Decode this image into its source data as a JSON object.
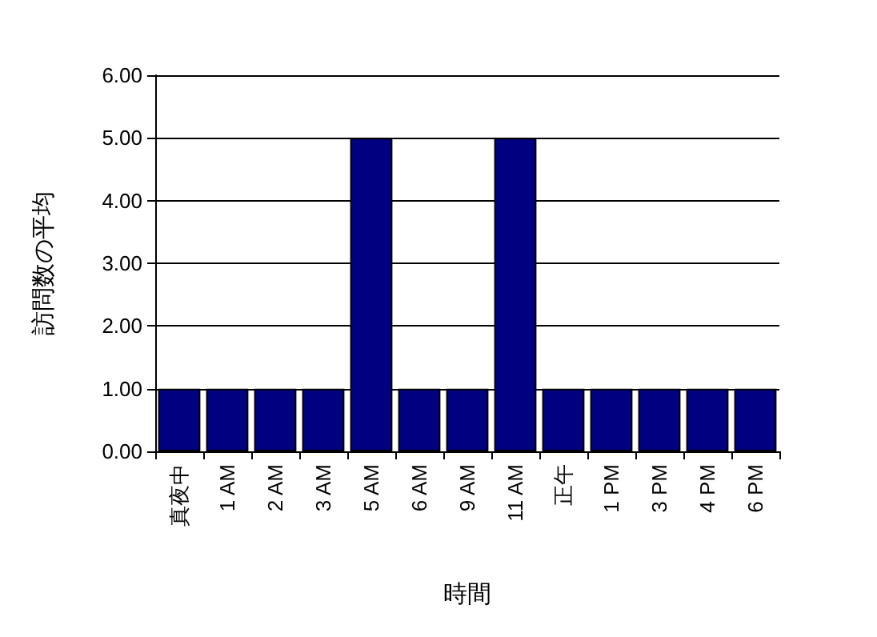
{
  "chart_data": {
    "type": "bar",
    "xlabel": "時間",
    "ylabel": "訪問数の平均",
    "categories": [
      "真夜中",
      "1 AM",
      "2 AM",
      "3 AM",
      "5 AM",
      "6 AM",
      "9 AM",
      "11 AM",
      "正午",
      "1 PM",
      "3 PM",
      "4 PM",
      "6 PM"
    ],
    "values": [
      1,
      1,
      1,
      1,
      5,
      1,
      1,
      5,
      1,
      1,
      1,
      1,
      1
    ],
    "color": "#000080",
    "ylim": [
      0,
      6
    ],
    "yticks": [
      {
        "value": 0,
        "label": "0.00"
      },
      {
        "value": 1,
        "label": "1.00"
      },
      {
        "value": 2,
        "label": "2.00"
      },
      {
        "value": 3,
        "label": "3.00"
      },
      {
        "value": 4,
        "label": "4.00"
      },
      {
        "value": 5,
        "label": "5.00"
      },
      {
        "value": 6,
        "label": "6.00"
      }
    ],
    "grid": "y"
  }
}
